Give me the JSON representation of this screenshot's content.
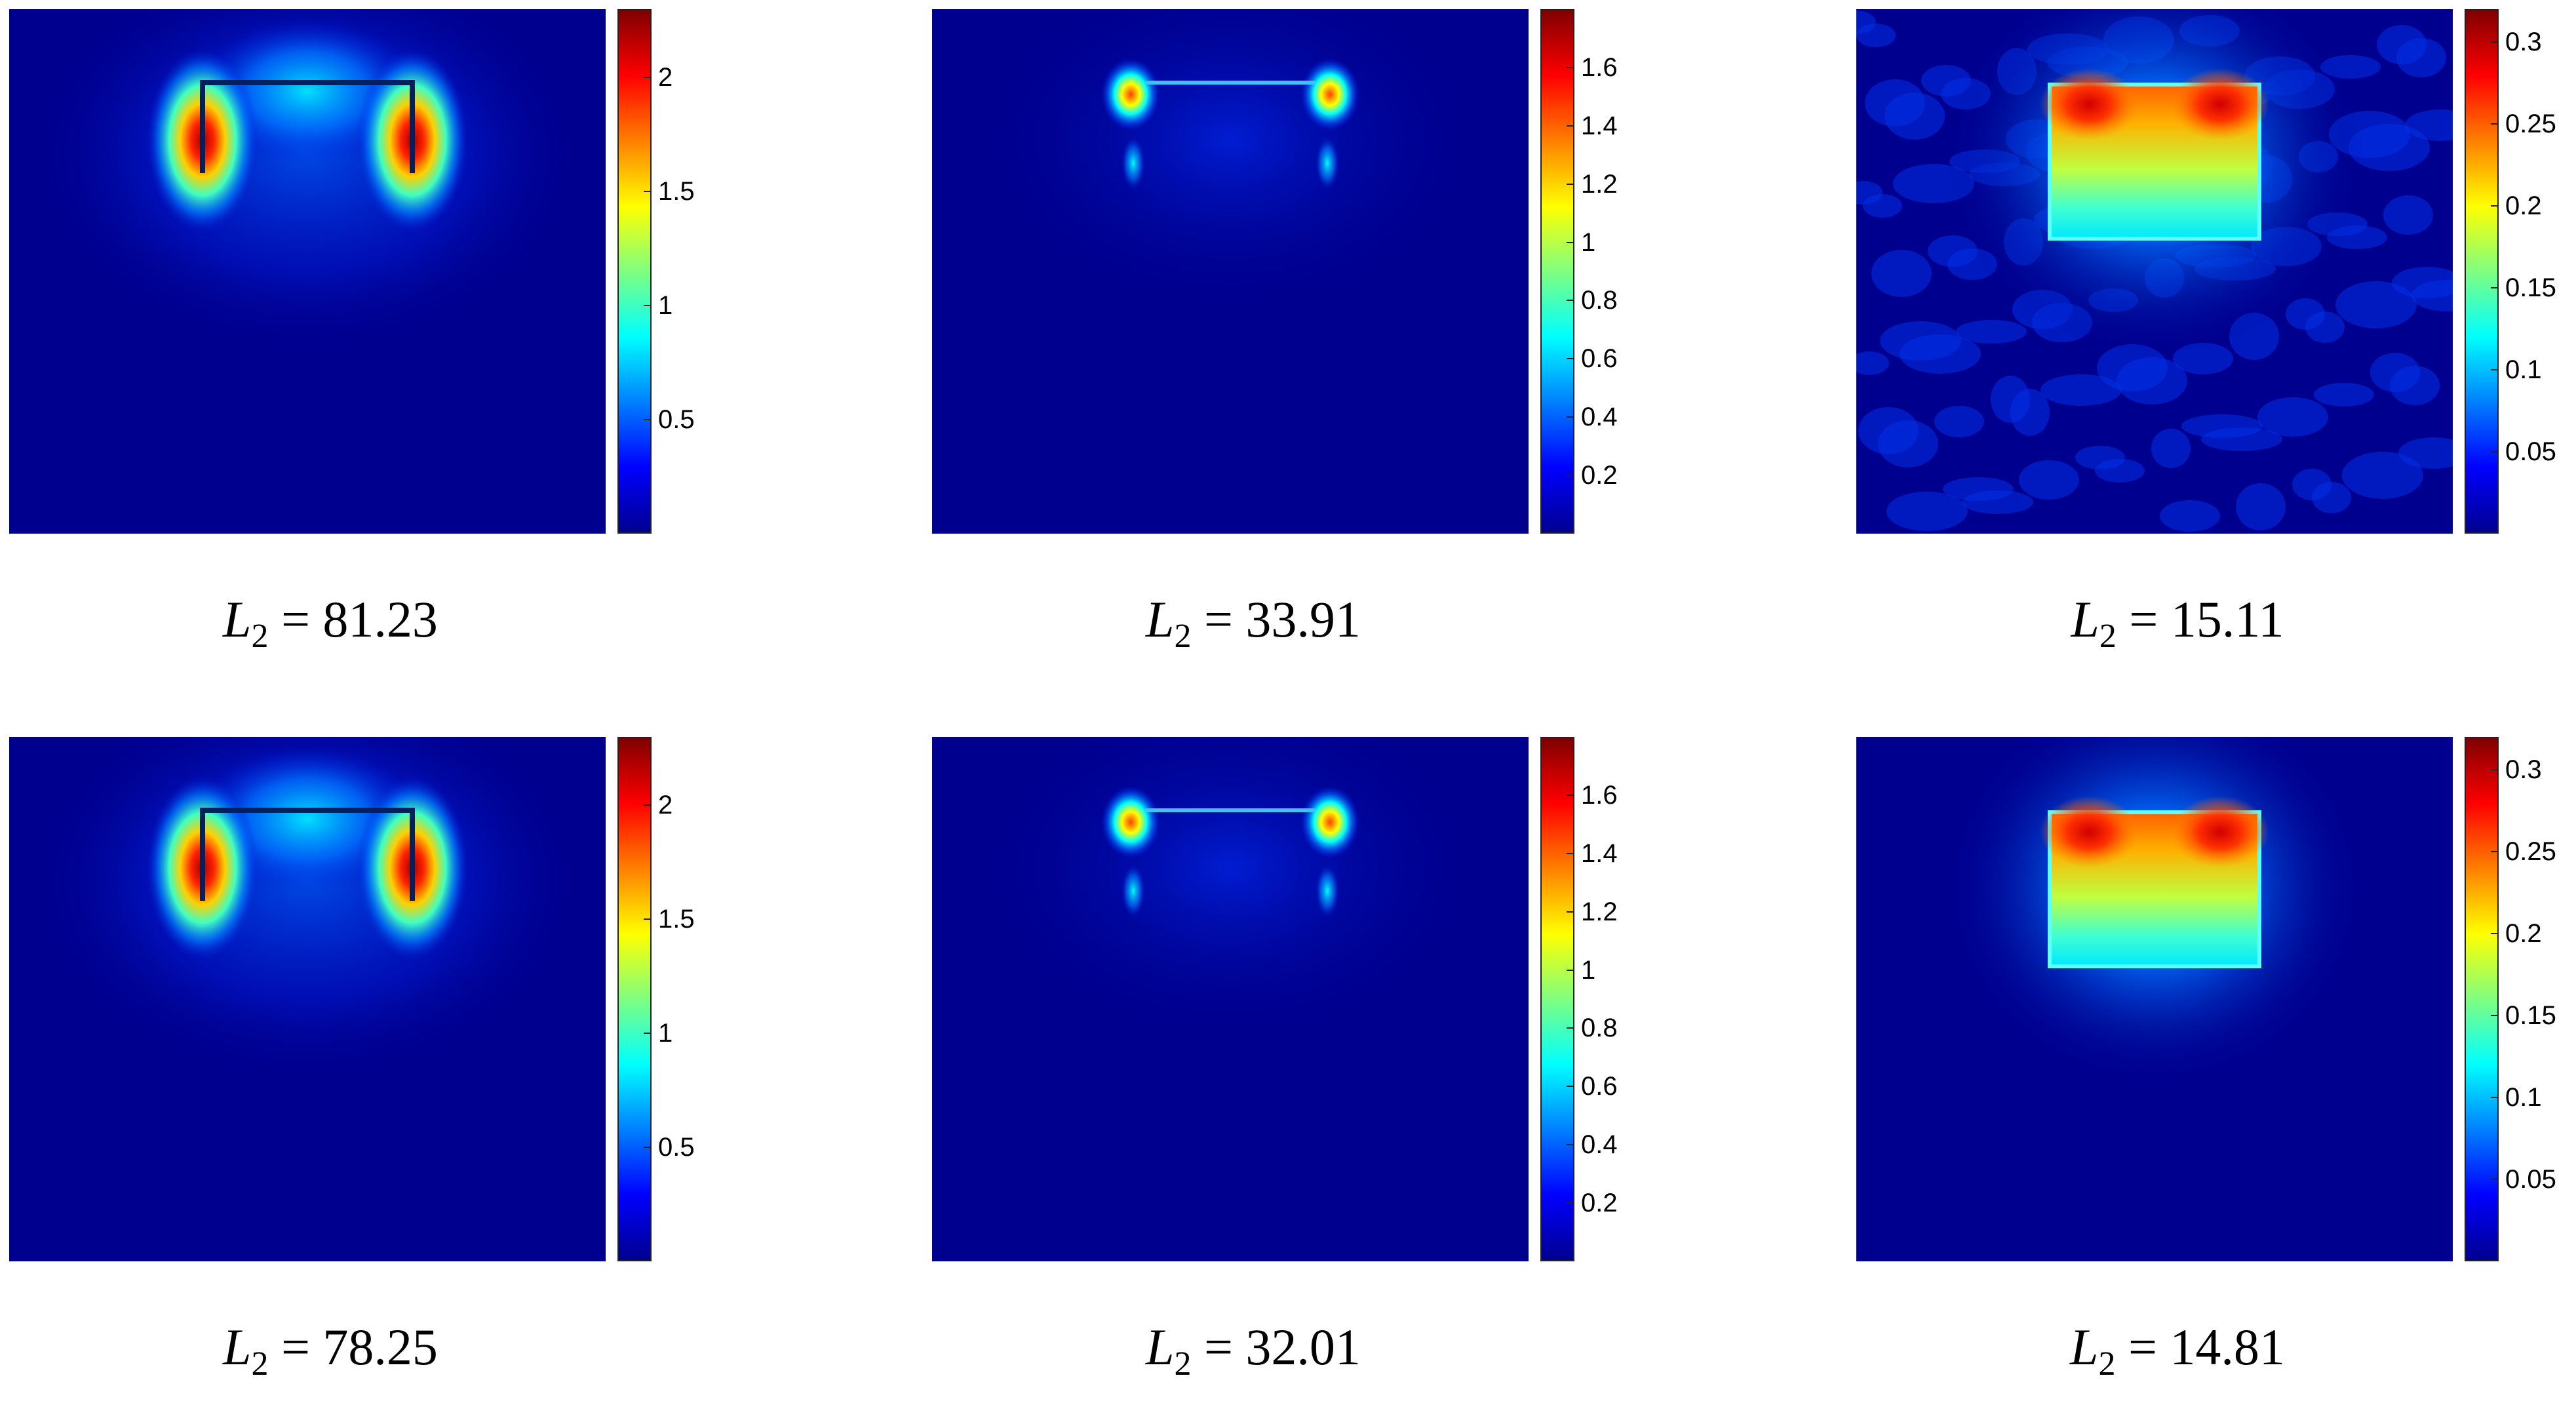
{
  "colormap": [
    "#00008f",
    "#0000ff",
    "#0080ff",
    "#00ffff",
    "#80ff80",
    "#ffff00",
    "#ff8000",
    "#ff0000",
    "#800000"
  ],
  "rows": [
    {
      "panels": [
        {
          "caption_symbol": "L",
          "caption_subscript": "2",
          "caption_value": "= 81.23",
          "colorbar": {
            "min": 0,
            "max": 2.3,
            "ticks": [
              "0.5",
              "1",
              "1.5",
              "2"
            ]
          },
          "pattern": "legs"
        },
        {
          "caption_symbol": "L",
          "caption_subscript": "2",
          "caption_value": "= 33.91",
          "colorbar": {
            "min": 0,
            "max": 1.8,
            "ticks": [
              "0.2",
              "0.4",
              "0.6",
              "0.8",
              "1",
              "1.2",
              "1.4",
              "1.6"
            ]
          },
          "pattern": "frame"
        },
        {
          "caption_symbol": "L",
          "caption_subscript": "2",
          "caption_value": "= 15.11",
          "colorbar": {
            "min": 0,
            "max": 0.32,
            "ticks": [
              "0.05",
              "0.1",
              "0.15",
              "0.2",
              "0.25",
              "0.3"
            ]
          },
          "pattern": "block-noisy"
        }
      ]
    },
    {
      "panels": [
        {
          "caption_symbol": "L",
          "caption_subscript": "2",
          "caption_value": "= 78.25",
          "colorbar": {
            "min": 0,
            "max": 2.3,
            "ticks": [
              "0.5",
              "1",
              "1.5",
              "2"
            ]
          },
          "pattern": "legs"
        },
        {
          "caption_symbol": "L",
          "caption_subscript": "2",
          "caption_value": "= 32.01",
          "colorbar": {
            "min": 0,
            "max": 1.8,
            "ticks": [
              "0.2",
              "0.4",
              "0.6",
              "0.8",
              "1",
              "1.2",
              "1.4",
              "1.6"
            ]
          },
          "pattern": "frame"
        },
        {
          "caption_symbol": "L",
          "caption_subscript": "2",
          "caption_value": "= 14.81",
          "colorbar": {
            "min": 0,
            "max": 0.32,
            "ticks": [
              "0.05",
              "0.1",
              "0.15",
              "0.2",
              "0.25",
              "0.3"
            ]
          },
          "pattern": "block"
        }
      ]
    }
  ]
}
